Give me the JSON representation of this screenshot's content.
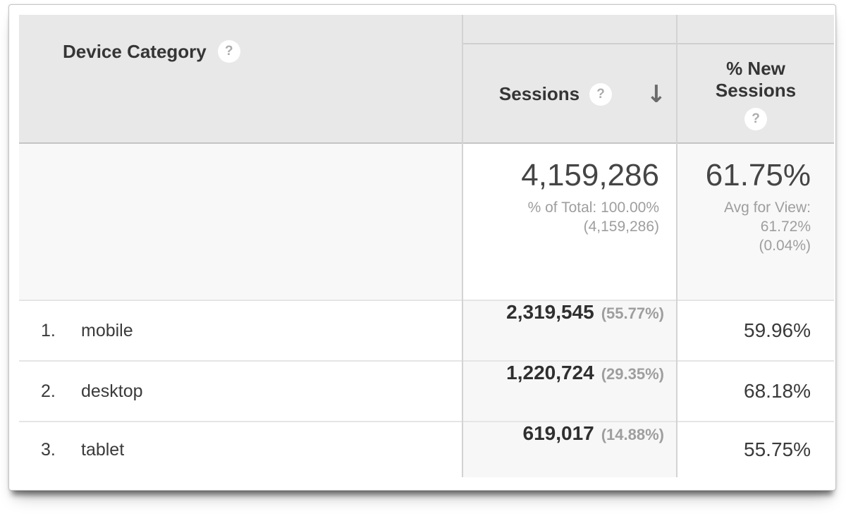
{
  "table": {
    "columns": {
      "dimension": {
        "label": "Device Category",
        "help_icon": "?"
      },
      "sessions": {
        "label": "Sessions",
        "help_icon": "?",
        "sort_arrow": "↓",
        "sort_direction": "descending"
      },
      "new_sessions": {
        "label_line1": "% New",
        "label_line2": "Sessions",
        "help_icon": "?"
      }
    },
    "summary": {
      "sessions_total": "4,159,286",
      "sessions_sub_line1": "% of Total: 100.00%",
      "sessions_sub_line2": "(4,159,286)",
      "new_sessions_avg": "61.75%",
      "new_sessions_sub_line1": "Avg for View:",
      "new_sessions_sub_line2": "61.72%",
      "new_sessions_sub_line3": "(0.04%)"
    },
    "rows": [
      {
        "rank": "1.",
        "name": "mobile",
        "sessions": "2,319,545",
        "sessions_pct": "(55.77%)",
        "new_sessions": "59.96%"
      },
      {
        "rank": "2.",
        "name": "desktop",
        "sessions": "1,220,724",
        "sessions_pct": "(29.35%)",
        "new_sessions": "68.18%"
      },
      {
        "rank": "3.",
        "name": "tablet",
        "sessions": "619,017",
        "sessions_pct": "(14.88%)",
        "new_sessions": "55.75%"
      }
    ],
    "colors": {
      "header_bg": "#e8e8e8",
      "sorted_column_bg": "#f7f7f7",
      "summary_row_bg": "#f8f8f8",
      "value_text": "#2f2f2f",
      "muted_text": "#9e9e9e"
    }
  }
}
